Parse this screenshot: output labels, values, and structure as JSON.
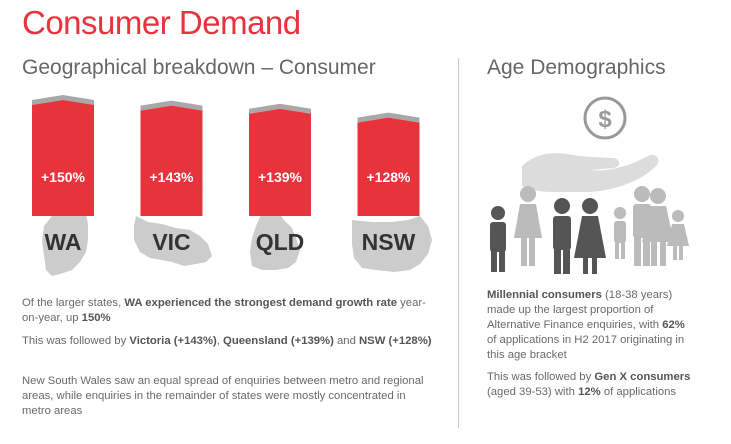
{
  "title": "Consumer Demand",
  "left_subtitle": "Geographical breakdown – Consumer",
  "right_subtitle": "Age Demographics",
  "colors": {
    "accent": "#e8323c",
    "map_grey": "#cccccc",
    "cap_grey": "#a8a8a8",
    "people_grey": "#555555",
    "people_light": "#bbbbbb"
  },
  "chart_data": {
    "type": "bar",
    "categories": [
      "WA",
      "VIC",
      "QLD",
      "NSW"
    ],
    "values": [
      150,
      143,
      139,
      128
    ],
    "data_labels": [
      "+150%",
      "+143%",
      "+139%",
      "+128%"
    ],
    "unit": "%",
    "title": "Geographical breakdown – Consumer",
    "xlabel": "",
    "ylabel": "",
    "grid": false,
    "legend": "none"
  },
  "left_text": {
    "p1": [
      {
        "t": "Of the larger states, ",
        "b": false
      },
      {
        "t": "WA experienced the strongest demand growth rate",
        "b": true
      },
      {
        "t": " year-on-year, up ",
        "b": false
      },
      {
        "t": "150%",
        "b": true
      }
    ],
    "p2": [
      {
        "t": "This was followed by ",
        "b": false
      },
      {
        "t": "Victoria (+143%)",
        "b": true
      },
      {
        "t": ", ",
        "b": false
      },
      {
        "t": "Queensland (+139%)",
        "b": true
      },
      {
        "t": " and ",
        "b": false
      },
      {
        "t": "NSW (+128%)",
        "b": true
      }
    ],
    "p3": [
      {
        "t": "New South Wales saw an equal spread of enquiries between metro and regional areas, while enquiries in the remainder of states were mostly concentrated in metro areas",
        "b": false
      }
    ]
  },
  "right_text": {
    "p1": [
      {
        "t": "Millennial consumers",
        "b": true
      },
      {
        "t": " (18-38 years) made up the largest proportion of Alternative Finance enquiries, with ",
        "b": false
      },
      {
        "t": "62%",
        "b": true
      },
      {
        "t": " of applications in H2 2017 originating in this age bracket",
        "b": false
      }
    ],
    "p2": [
      {
        "t": "This was followed by ",
        "b": false
      },
      {
        "t": "Gen X consumers",
        "b": true
      },
      {
        "t": " (aged 39-53) with ",
        "b": false
      },
      {
        "t": "12%",
        "b": true
      },
      {
        "t": " of applications",
        "b": false
      }
    ]
  },
  "icons": {
    "illustration": "hand-dollar-family-icon"
  }
}
